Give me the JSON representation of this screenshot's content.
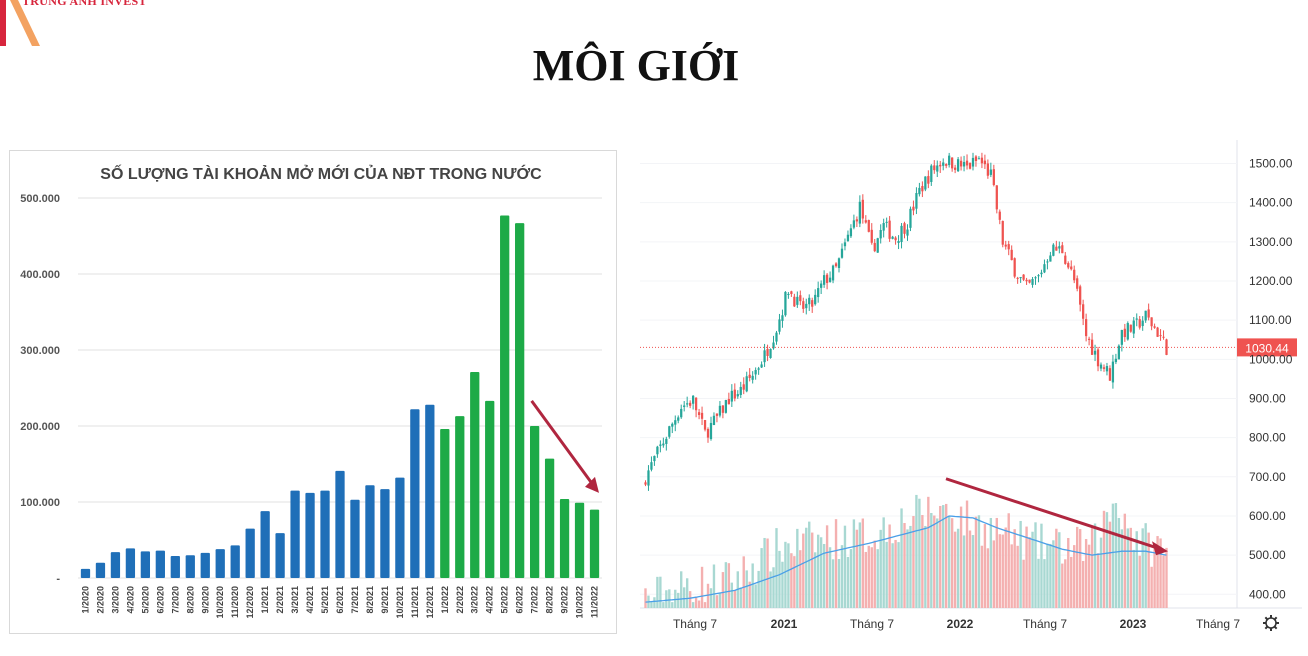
{
  "brand": {
    "name": "TRUNG ANH INVEST"
  },
  "page": {
    "title": "MÔI GIỚI"
  },
  "chart_data": [
    {
      "type": "bar",
      "title": "SỐ LƯỢNG TÀI KHOẢN MỞ MỚI CỦA NĐT TRONG NƯỚC",
      "categories": [
        "1/2020",
        "2/2020",
        "3/2020",
        "4/2020",
        "5/2020",
        "6/2020",
        "7/2020",
        "8/2020",
        "9/2020",
        "10/2020",
        "11/2020",
        "12/2020",
        "1/2021",
        "2/2021",
        "3/2021",
        "4/2021",
        "5/2021",
        "6/2021",
        "7/2021",
        "8/2021",
        "9/2021",
        "10/2021",
        "11/2021",
        "12/2021",
        "1/2022",
        "2/2022",
        "3/2022",
        "4/2022",
        "5/2022",
        "6/2022",
        "7/2022",
        "8/2022",
        "9/2022",
        "10/2022",
        "11/2022"
      ],
      "values": [
        12000,
        20000,
        34000,
        39000,
        35000,
        36000,
        29000,
        30000,
        33000,
        38000,
        43000,
        65000,
        88000,
        59000,
        115000,
        112000,
        115000,
        141000,
        103000,
        122000,
        117000,
        132000,
        222000,
        228000,
        196000,
        213000,
        271000,
        233000,
        477000,
        467000,
        200000,
        157000,
        104000,
        99000,
        90000
      ],
      "colors": [
        "#1f6fb8",
        "#1f6fb8",
        "#1f6fb8",
        "#1f6fb8",
        "#1f6fb8",
        "#1f6fb8",
        "#1f6fb8",
        "#1f6fb8",
        "#1f6fb8",
        "#1f6fb8",
        "#1f6fb8",
        "#1f6fb8",
        "#1f6fb8",
        "#1f6fb8",
        "#1f6fb8",
        "#1f6fb8",
        "#1f6fb8",
        "#1f6fb8",
        "#1f6fb8",
        "#1f6fb8",
        "#1f6fb8",
        "#1f6fb8",
        "#1f6fb8",
        "#1f6fb8",
        "#1daa47",
        "#1daa47",
        "#1daa47",
        "#1daa47",
        "#1daa47",
        "#1daa47",
        "#1daa47",
        "#1daa47",
        "#1daa47",
        "#1daa47",
        "#1daa47"
      ],
      "ylim": [
        0,
        500000
      ],
      "yticks": [
        0,
        100000,
        200000,
        300000,
        400000,
        500000
      ],
      "ytick_labels": [
        "-",
        "100.000",
        "200.000",
        "300.000",
        "400.000",
        "500.000"
      ],
      "grid": true,
      "arrow_color": "#b0263f"
    },
    {
      "type": "candlestick",
      "x_tick_labels": [
        "Tháng 7",
        "2021",
        "Tháng 7",
        "2022",
        "Tháng 7",
        "2023",
        "Tháng 7"
      ],
      "yticks": [
        400,
        500,
        600,
        700,
        800,
        900,
        1000,
        1100,
        1200,
        1300,
        1400,
        1500
      ],
      "ytick_labels": [
        "400.00",
        "500.00",
        "600.00",
        "700.00",
        "800.00",
        "900.00",
        "1000.00",
        "1100.00",
        "1200.00",
        "1300.00",
        "1400.00",
        "1500.00"
      ],
      "ylim": [
        365,
        1560
      ],
      "last_price": 1030.44,
      "last_price_label": "1030.44",
      "key_closes": [
        [
          0,
          700
        ],
        [
          4,
          760
        ],
        [
          8,
          820
        ],
        [
          12,
          880
        ],
        [
          16,
          895
        ],
        [
          20,
          810
        ],
        [
          24,
          850
        ],
        [
          28,
          900
        ],
        [
          32,
          920
        ],
        [
          36,
          960
        ],
        [
          40,
          1010
        ],
        [
          44,
          1080
        ],
        [
          48,
          1180
        ],
        [
          52,
          1130
        ],
        [
          56,
          1140
        ],
        [
          60,
          1200
        ],
        [
          64,
          1230
        ],
        [
          68,
          1310
        ],
        [
          72,
          1390
        ],
        [
          76,
          1280
        ],
        [
          80,
          1340
        ],
        [
          84,
          1310
        ],
        [
          88,
          1350
        ],
        [
          92,
          1430
        ],
        [
          96,
          1480
        ],
        [
          100,
          1510
        ],
        [
          104,
          1500
        ],
        [
          108,
          1490
        ],
        [
          112,
          1510
        ],
        [
          116,
          1470
        ],
        [
          120,
          1300
        ],
        [
          124,
          1230
        ],
        [
          128,
          1180
        ],
        [
          132,
          1210
        ],
        [
          136,
          1280
        ],
        [
          140,
          1280
        ],
        [
          144,
          1200
        ],
        [
          148,
          1060
        ],
        [
          152,
          1000
        ],
        [
          156,
          960
        ],
        [
          160,
          1070
        ],
        [
          164,
          1080
        ],
        [
          168,
          1110
        ],
        [
          172,
          1070
        ],
        [
          175,
          1030
        ]
      ],
      "volume_profile": [
        [
          0,
          390
        ],
        [
          15,
          420
        ],
        [
          30,
          440
        ],
        [
          45,
          520
        ],
        [
          60,
          540
        ],
        [
          75,
          550
        ],
        [
          90,
          600
        ],
        [
          100,
          620
        ],
        [
          110,
          580
        ],
        [
          120,
          560
        ],
        [
          130,
          530
        ],
        [
          140,
          520
        ],
        [
          150,
          520
        ],
        [
          158,
          640
        ],
        [
          165,
          540
        ],
        [
          175,
          510
        ]
      ],
      "ma_line": [
        [
          0,
          380
        ],
        [
          15,
          390
        ],
        [
          30,
          410
        ],
        [
          45,
          450
        ],
        [
          60,
          505
        ],
        [
          75,
          530
        ],
        [
          85,
          550
        ],
        [
          95,
          570
        ],
        [
          102,
          600
        ],
        [
          110,
          595
        ],
        [
          118,
          570
        ],
        [
          128,
          545
        ],
        [
          140,
          515
        ],
        [
          150,
          500
        ],
        [
          160,
          510
        ],
        [
          168,
          510
        ],
        [
          175,
          500
        ]
      ],
      "up_color": "#26a69a",
      "down_color": "#ef5350",
      "ma_color": "#4a9fe8",
      "arrow_color": "#b0263f",
      "settings_icon": "gear-icon"
    }
  ]
}
